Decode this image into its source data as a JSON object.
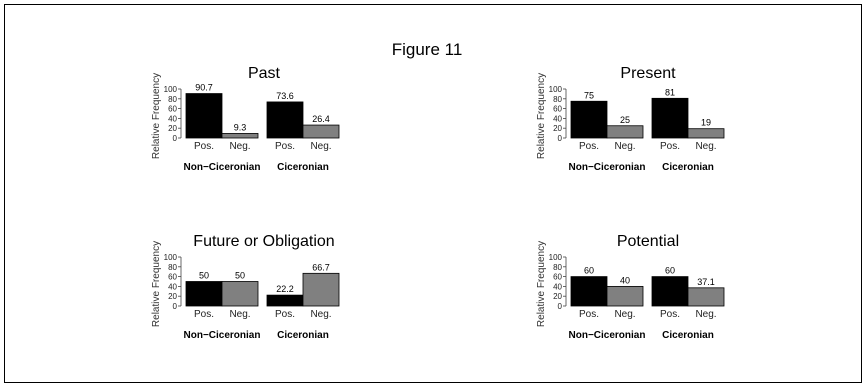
{
  "figure": {
    "title": "Figure 11"
  },
  "colors": {
    "positive": "#000000",
    "negative": "#808080"
  },
  "chart_data": [
    {
      "type": "bar",
      "title": "Past",
      "ylabel": "Relative Frequency",
      "yticks": [
        0,
        20,
        40,
        60,
        80,
        100
      ],
      "ylim": [
        0,
        100
      ],
      "bar_labels": [
        "Pos.",
        "Neg."
      ],
      "groups": [
        {
          "name": "Non−Ciceronian",
          "values": [
            90.7,
            9.3
          ],
          "labels": [
            "90.7",
            "9.3"
          ]
        },
        {
          "name": "Ciceronian",
          "values": [
            73.6,
            26.4
          ],
          "labels": [
            "73.6",
            "26.4"
          ]
        }
      ]
    },
    {
      "type": "bar",
      "title": "Present",
      "ylabel": "Relative Frequency",
      "yticks": [
        0,
        20,
        40,
        60,
        80,
        100
      ],
      "ylim": [
        0,
        100
      ],
      "bar_labels": [
        "Pos.",
        "Neg."
      ],
      "groups": [
        {
          "name": "Non−Ciceronian",
          "values": [
            75,
            25
          ],
          "labels": [
            "75",
            "25"
          ]
        },
        {
          "name": "Ciceronian",
          "values": [
            81,
            19
          ],
          "labels": [
            "81",
            "19"
          ]
        }
      ]
    },
    {
      "type": "bar",
      "title": "Future or Obligation",
      "ylabel": "Relative Frequency",
      "yticks": [
        0,
        20,
        40,
        60,
        80,
        100
      ],
      "ylim": [
        0,
        100
      ],
      "bar_labels": [
        "Pos.",
        "Neg."
      ],
      "groups": [
        {
          "name": "Non−Ciceronian",
          "values": [
            50,
            50
          ],
          "labels": [
            "50",
            "50"
          ]
        },
        {
          "name": "Ciceronian",
          "values": [
            22.2,
            66.7
          ],
          "labels": [
            "22.2",
            "66.7"
          ]
        }
      ]
    },
    {
      "type": "bar",
      "title": "Potential",
      "ylabel": "Relative Frequency",
      "yticks": [
        0,
        20,
        40,
        60,
        80,
        100
      ],
      "ylim": [
        0,
        100
      ],
      "bar_labels": [
        "Pos.",
        "Neg."
      ],
      "groups": [
        {
          "name": "Non−Ciceronian",
          "values": [
            60,
            40
          ],
          "labels": [
            "60",
            "40"
          ]
        },
        {
          "name": "Ciceronian",
          "values": [
            60,
            37.1
          ],
          "labels": [
            "60",
            "37.1"
          ]
        }
      ]
    }
  ]
}
